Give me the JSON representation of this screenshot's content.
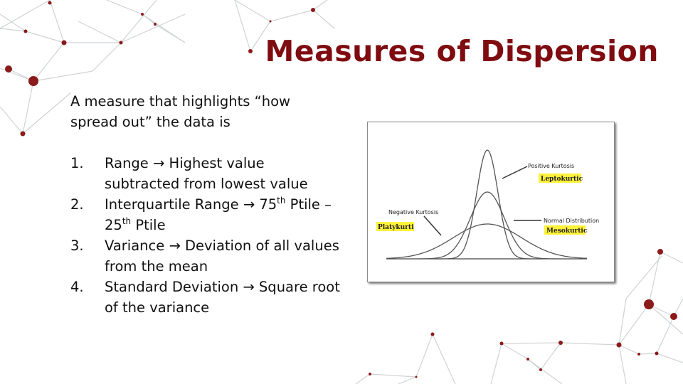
{
  "slide": {
    "title": "Measures of Dispersion",
    "intro": "A measure that highlights “how spread out” the data is",
    "items": [
      {
        "number": "1.",
        "parts": [
          {
            "t": "Range "
          },
          {
            "arrow": true
          },
          {
            "t": " Highest value subtracted from lowest value"
          }
        ]
      },
      {
        "number": "2.",
        "parts": [
          {
            "t": "Interquartile Range "
          },
          {
            "arrow": true
          },
          {
            "t": " 75"
          },
          {
            "sup": "th"
          },
          {
            "t": " Ptile – 25"
          },
          {
            "sup": "th"
          },
          {
            "t": " Ptile"
          }
        ]
      },
      {
        "number": "3.",
        "parts": [
          {
            "t": "Variance "
          },
          {
            "arrow": true
          },
          {
            "t": " Deviation of all values from the mean"
          }
        ]
      },
      {
        "number": "4.",
        "parts": [
          {
            "t": "Standard Deviation "
          },
          {
            "arrow": true
          },
          {
            "t": " Square root of the variance"
          }
        ]
      }
    ],
    "arrow_glyph": "→"
  },
  "figure": {
    "labels": {
      "positive": "Positive Kurtosis",
      "lepto": "Leptokurtic",
      "negative": "Negative Kurtosis",
      "platy": "Platykurti",
      "normal": "Normal Distribution",
      "meso": "Mesokurtic"
    },
    "highlight_color": "#fff23a"
  },
  "colors": {
    "title": "#7f0c10",
    "network_node": "#8b1a1a",
    "network_line": "#cfd3d6"
  }
}
